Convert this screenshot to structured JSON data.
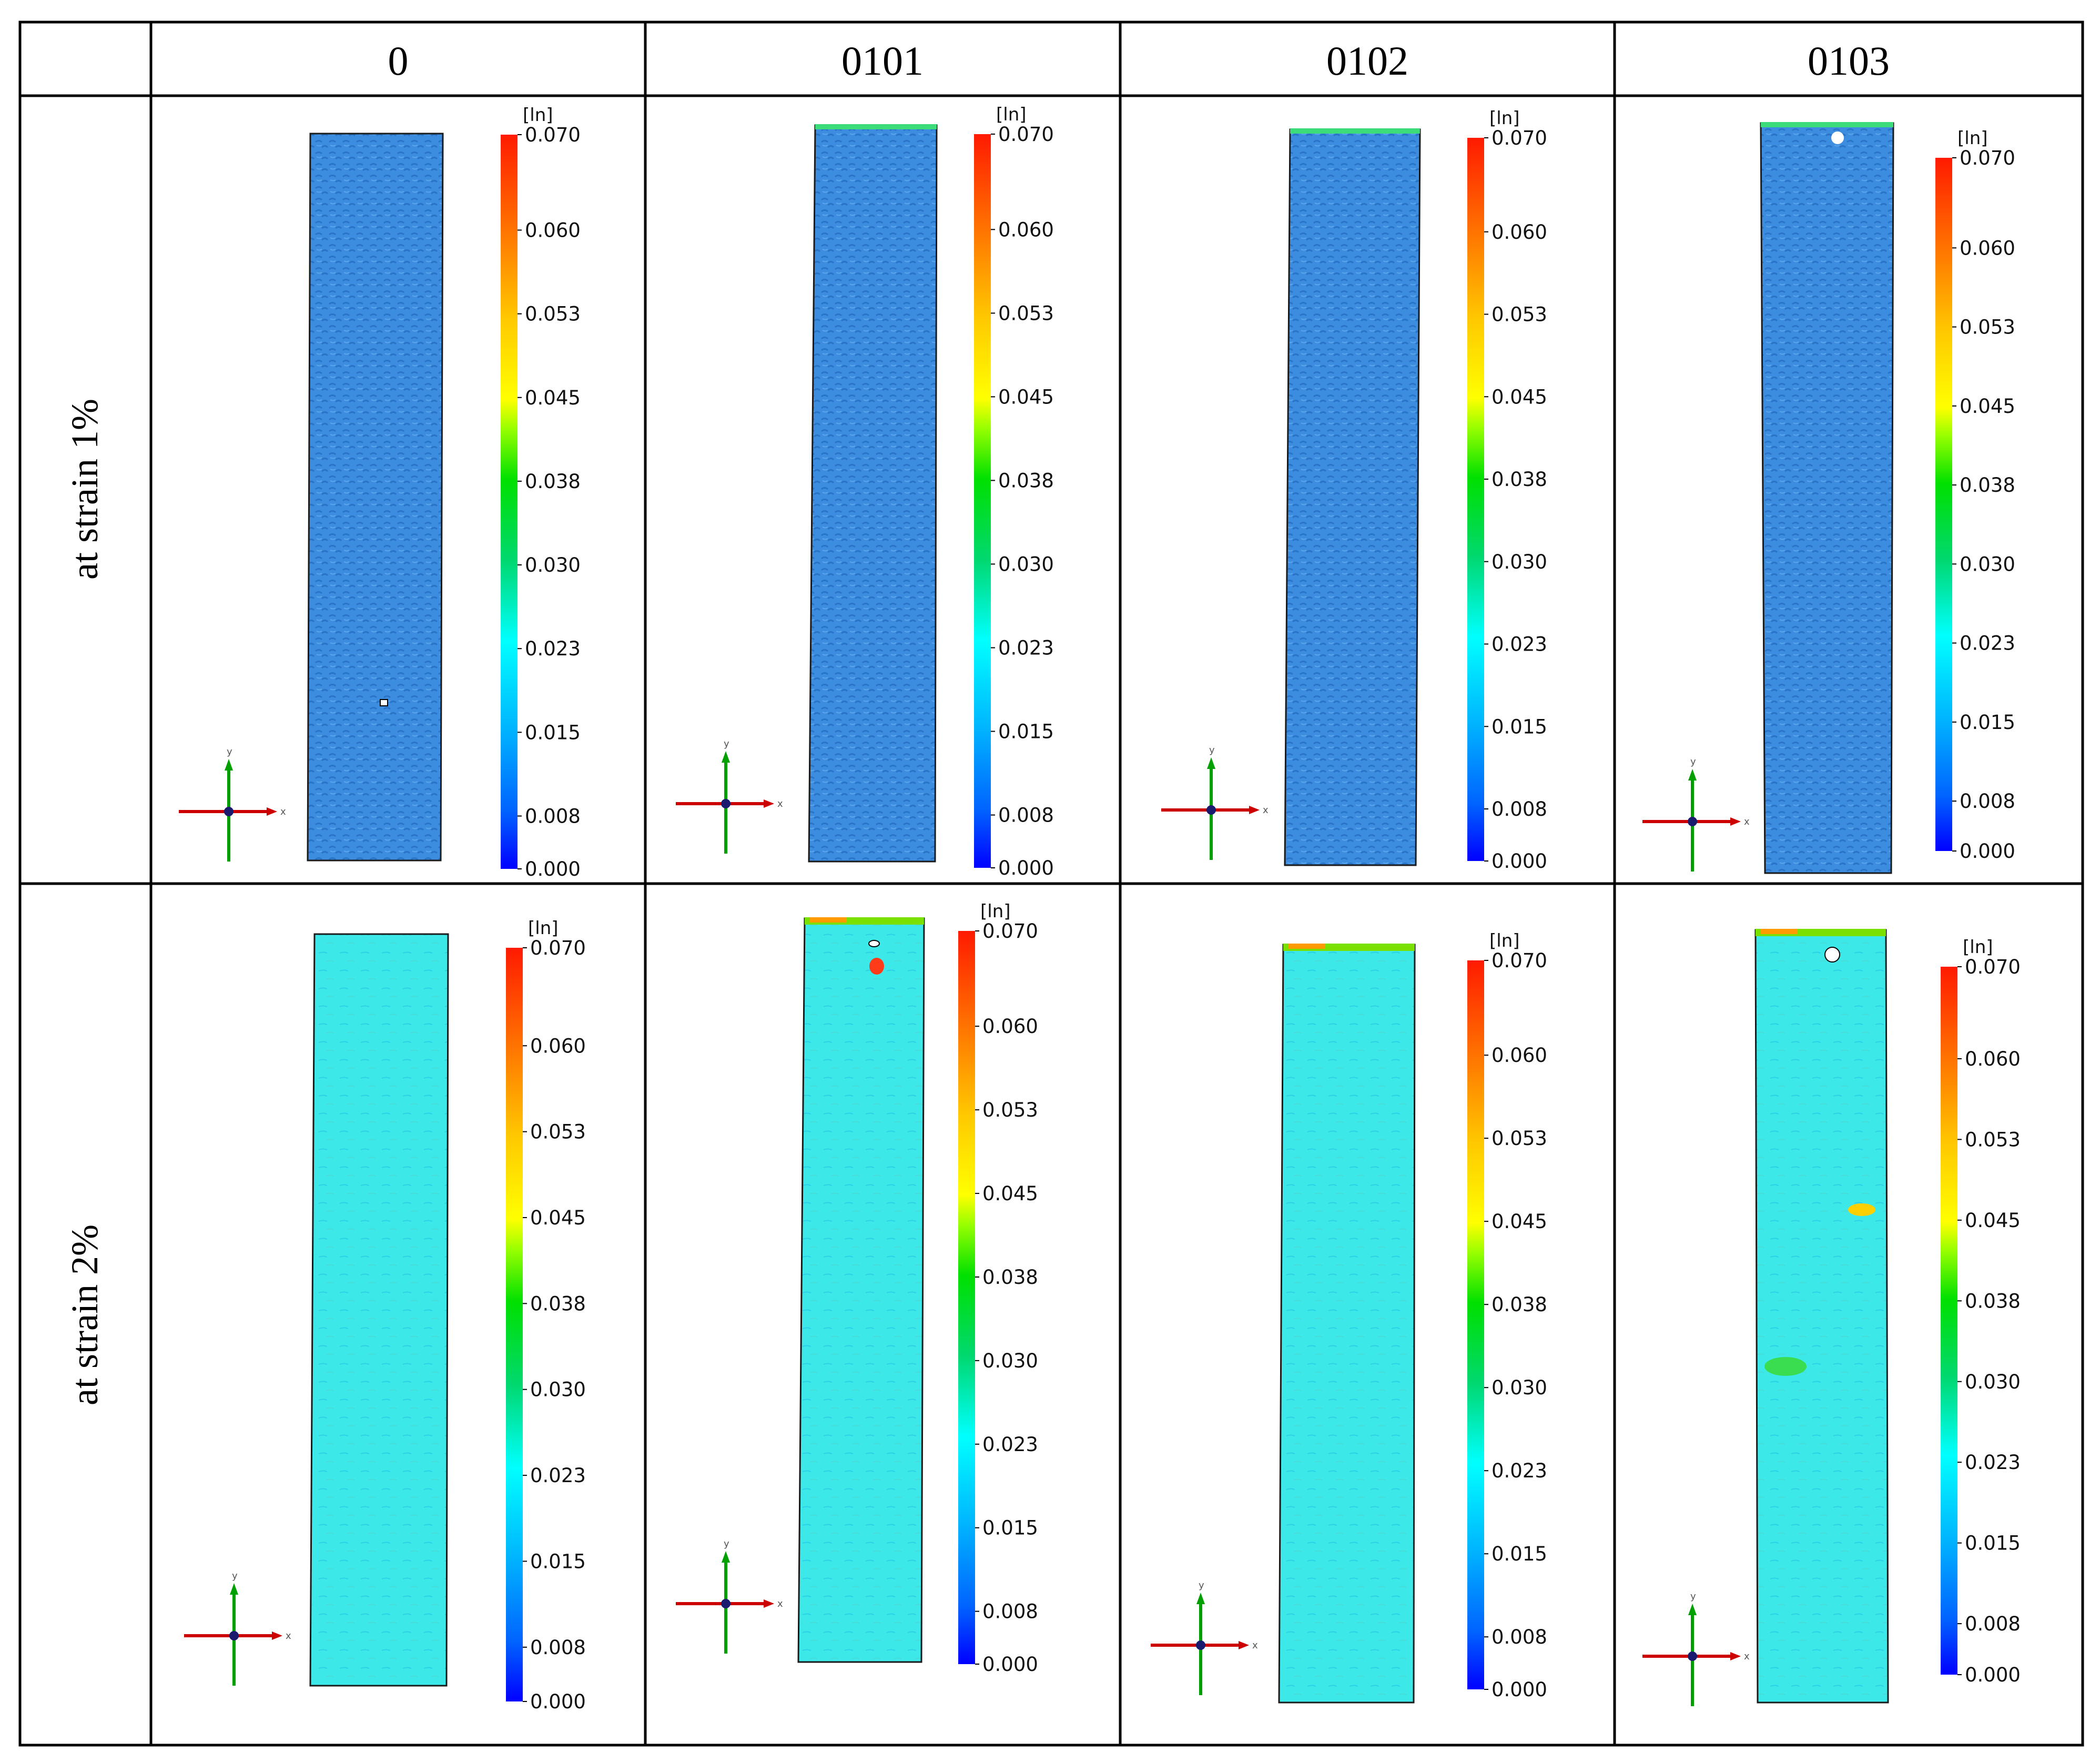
{
  "table": {
    "columns": [
      "0",
      "0101",
      "0102",
      "0103"
    ],
    "rows": [
      {
        "label": "at strain 1%",
        "state": "strain1"
      },
      {
        "label": "at strain 2%",
        "state": "strain2"
      }
    ]
  },
  "colorbar": {
    "unit": "[ln]",
    "ticks": [
      "0.070",
      "0.060",
      "0.053",
      "0.045",
      "0.038",
      "0.030",
      "0.023",
      "0.015",
      "0.008",
      "0.000"
    ],
    "colors": [
      "#ff1a00",
      "#ff7a00",
      "#ffc800",
      "#ffff00",
      "#00e000",
      "#00d870",
      "#00ffff",
      "#00b4ff",
      "#0064ff",
      "#0000ff"
    ]
  },
  "axes": {
    "x": "x",
    "y": "y"
  },
  "colors": {
    "strain1_fill": "#3c8ce0",
    "strain2_fill": "#3ce8e8",
    "axis_x": "#cc0000",
    "axis_y": "#00a000"
  }
}
